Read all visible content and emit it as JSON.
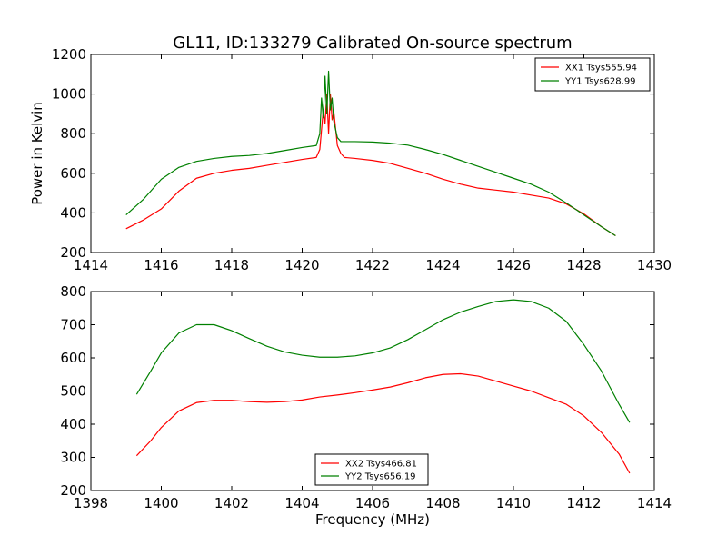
{
  "chart_data": [
    {
      "type": "line",
      "title": "GL11, ID:133279 Calibrated On-source spectrum",
      "xlabel": "",
      "ylabel": "Power in Kelvin",
      "xlim": [
        1414,
        1430
      ],
      "ylim": [
        200,
        1200
      ],
      "xticks": [
        1414,
        1416,
        1418,
        1420,
        1422,
        1424,
        1426,
        1428,
        1430
      ],
      "yticks": [
        200,
        400,
        600,
        800,
        1000,
        1200
      ],
      "legend_position": "upper right",
      "series": [
        {
          "name": "XX1 Tsys555.94",
          "color": "#ff0000",
          "points": [
            [
              1415.0,
              320
            ],
            [
              1415.5,
              365
            ],
            [
              1416.0,
              420
            ],
            [
              1416.5,
              510
            ],
            [
              1417.0,
              575
            ],
            [
              1417.5,
              600
            ],
            [
              1418.0,
              615
            ],
            [
              1418.5,
              625
            ],
            [
              1419.0,
              640
            ],
            [
              1419.5,
              655
            ],
            [
              1420.0,
              670
            ],
            [
              1420.4,
              680
            ],
            [
              1420.5,
              720
            ],
            [
              1420.6,
              920
            ],
            [
              1420.65,
              850
            ],
            [
              1420.7,
              1000
            ],
            [
              1420.75,
              800
            ],
            [
              1420.8,
              1000
            ],
            [
              1420.85,
              870
            ],
            [
              1420.9,
              910
            ],
            [
              1421.0,
              740
            ],
            [
              1421.1,
              700
            ],
            [
              1421.2,
              680
            ],
            [
              1421.5,
              675
            ],
            [
              1422.0,
              665
            ],
            [
              1422.5,
              650
            ],
            [
              1423.0,
              625
            ],
            [
              1423.5,
              600
            ],
            [
              1424.0,
              570
            ],
            [
              1424.5,
              545
            ],
            [
              1425.0,
              525
            ],
            [
              1425.5,
              515
            ],
            [
              1426.0,
              505
            ],
            [
              1426.5,
              490
            ],
            [
              1427.0,
              475
            ],
            [
              1427.5,
              445
            ],
            [
              1428.0,
              395
            ],
            [
              1428.5,
              330
            ],
            [
              1428.9,
              285
            ]
          ]
        },
        {
          "name": "YY1 Tsys628.99",
          "color": "#008000",
          "points": [
            [
              1415.0,
              390
            ],
            [
              1415.5,
              470
            ],
            [
              1416.0,
              570
            ],
            [
              1416.5,
              630
            ],
            [
              1417.0,
              660
            ],
            [
              1417.5,
              675
            ],
            [
              1418.0,
              685
            ],
            [
              1418.5,
              690
            ],
            [
              1419.0,
              700
            ],
            [
              1419.5,
              715
            ],
            [
              1420.0,
              730
            ],
            [
              1420.4,
              740
            ],
            [
              1420.5,
              800
            ],
            [
              1420.55,
              980
            ],
            [
              1420.6,
              880
            ],
            [
              1420.65,
              1090
            ],
            [
              1420.7,
              900
            ],
            [
              1420.75,
              1115
            ],
            [
              1420.8,
              920
            ],
            [
              1420.85,
              980
            ],
            [
              1420.9,
              860
            ],
            [
              1421.0,
              780
            ],
            [
              1421.1,
              760
            ],
            [
              1421.5,
              760
            ],
            [
              1422.0,
              758
            ],
            [
              1422.5,
              752
            ],
            [
              1423.0,
              742
            ],
            [
              1423.5,
              720
            ],
            [
              1424.0,
              695
            ],
            [
              1424.5,
              665
            ],
            [
              1425.0,
              635
            ],
            [
              1425.5,
              605
            ],
            [
              1426.0,
              575
            ],
            [
              1426.5,
              545
            ],
            [
              1427.0,
              505
            ],
            [
              1427.5,
              450
            ],
            [
              1428.0,
              390
            ],
            [
              1428.5,
              330
            ],
            [
              1428.9,
              285
            ]
          ]
        }
      ]
    },
    {
      "type": "line",
      "title": "",
      "xlabel": "Frequency (MHz)",
      "ylabel": "",
      "xlim": [
        1398,
        1414
      ],
      "ylim": [
        200,
        800
      ],
      "xticks": [
        1398,
        1400,
        1402,
        1404,
        1406,
        1408,
        1410,
        1412,
        1414
      ],
      "yticks": [
        200,
        300,
        400,
        500,
        600,
        700,
        800
      ],
      "legend_position": "lower center",
      "series": [
        {
          "name": "XX2 Tsys466.81",
          "color": "#ff0000",
          "points": [
            [
              1399.3,
              305
            ],
            [
              1399.7,
              350
            ],
            [
              1400.0,
              390
            ],
            [
              1400.5,
              440
            ],
            [
              1401.0,
              465
            ],
            [
              1401.5,
              472
            ],
            [
              1402.0,
              472
            ],
            [
              1402.5,
              468
            ],
            [
              1403.0,
              466
            ],
            [
              1403.5,
              468
            ],
            [
              1404.0,
              473
            ],
            [
              1404.5,
              482
            ],
            [
              1405.0,
              488
            ],
            [
              1405.5,
              495
            ],
            [
              1406.0,
              503
            ],
            [
              1406.5,
              512
            ],
            [
              1407.0,
              525
            ],
            [
              1407.5,
              540
            ],
            [
              1408.0,
              550
            ],
            [
              1408.5,
              552
            ],
            [
              1409.0,
              545
            ],
            [
              1409.5,
              530
            ],
            [
              1410.0,
              515
            ],
            [
              1410.5,
              500
            ],
            [
              1411.0,
              480
            ],
            [
              1411.5,
              460
            ],
            [
              1412.0,
              425
            ],
            [
              1412.5,
              375
            ],
            [
              1413.0,
              310
            ],
            [
              1413.3,
              252
            ]
          ]
        },
        {
          "name": "YY2 Tsys656.19",
          "color": "#008000",
          "points": [
            [
              1399.3,
              490
            ],
            [
              1399.7,
              560
            ],
            [
              1400.0,
              615
            ],
            [
              1400.5,
              675
            ],
            [
              1401.0,
              700
            ],
            [
              1401.5,
              700
            ],
            [
              1402.0,
              682
            ],
            [
              1402.5,
              658
            ],
            [
              1403.0,
              635
            ],
            [
              1403.5,
              618
            ],
            [
              1404.0,
              608
            ],
            [
              1404.5,
              602
            ],
            [
              1405.0,
              602
            ],
            [
              1405.5,
              606
            ],
            [
              1406.0,
              615
            ],
            [
              1406.5,
              630
            ],
            [
              1407.0,
              655
            ],
            [
              1407.5,
              685
            ],
            [
              1408.0,
              715
            ],
            [
              1408.5,
              738
            ],
            [
              1409.0,
              755
            ],
            [
              1409.5,
              770
            ],
            [
              1410.0,
              775
            ],
            [
              1410.5,
              770
            ],
            [
              1411.0,
              750
            ],
            [
              1411.5,
              710
            ],
            [
              1412.0,
              640
            ],
            [
              1412.5,
              560
            ],
            [
              1413.0,
              460
            ],
            [
              1413.3,
              405
            ]
          ]
        }
      ]
    }
  ]
}
